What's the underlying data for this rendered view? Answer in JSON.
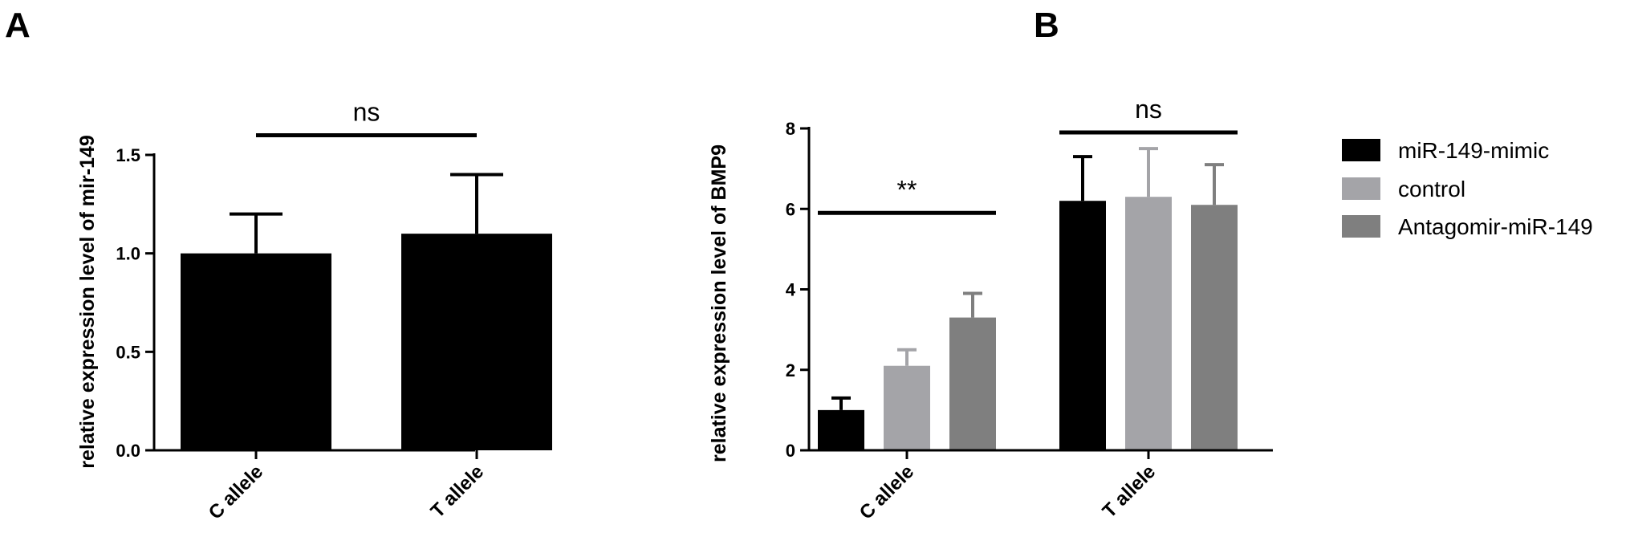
{
  "figure": {
    "panel_labels": [
      "A",
      "B"
    ]
  },
  "chart_data": [
    {
      "type": "bar",
      "panel": "A",
      "title": "",
      "xlabel": "",
      "ylabel": "relative expression level of mir-149",
      "categories": [
        "C allele",
        "T allele"
      ],
      "series": [
        {
          "values": [
            1.0,
            1.1
          ],
          "errors": [
            0.2,
            0.3
          ],
          "color": "#000000"
        }
      ],
      "ylim": [
        0,
        1.5
      ],
      "yticks": [
        0.0,
        0.5,
        1.0,
        1.5
      ],
      "ytick_labels": [
        "0.0",
        "0.5",
        "1.0",
        "1.5"
      ],
      "grid": false,
      "annotations": [
        {
          "text": "ns",
          "from_category": 0,
          "to_category": 1,
          "y": 1.6
        }
      ]
    },
    {
      "type": "bar",
      "panel": "B",
      "title": "",
      "xlabel": "",
      "ylabel": "relative expression level of BMP9",
      "categories": [
        "C allele",
        "T allele"
      ],
      "series": [
        {
          "name": "miR-149-mimic",
          "values": [
            1.0,
            6.2
          ],
          "errors": [
            0.3,
            1.1
          ],
          "color": "#000000"
        },
        {
          "name": "control",
          "values": [
            2.1,
            6.3
          ],
          "errors": [
            0.4,
            1.2
          ],
          "color": "#a4a4a8"
        },
        {
          "name": "Antagomir-miR-149",
          "values": [
            3.3,
            6.1
          ],
          "errors": [
            0.6,
            1.0
          ],
          "color": "#7f7f7f"
        }
      ],
      "ylim": [
        0,
        8
      ],
      "yticks": [
        0,
        2,
        4,
        6,
        8
      ],
      "ytick_labels": [
        "0",
        "2",
        "4",
        "6",
        "8"
      ],
      "grid": false,
      "legend_position": "right",
      "annotations": [
        {
          "text": "**",
          "category": 0,
          "y": 5.9
        },
        {
          "text": "ns",
          "category": 1,
          "y": 7.9
        }
      ]
    }
  ]
}
